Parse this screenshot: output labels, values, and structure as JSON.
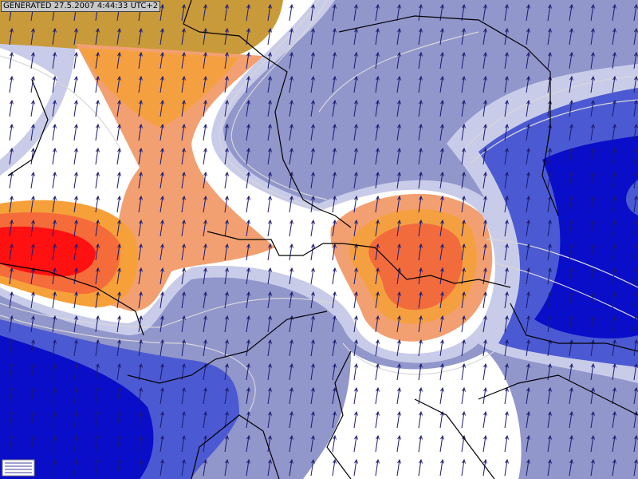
{
  "header": {
    "label": "GENERATED 27.5.2007 4:44:33 UTC+2"
  }
}
